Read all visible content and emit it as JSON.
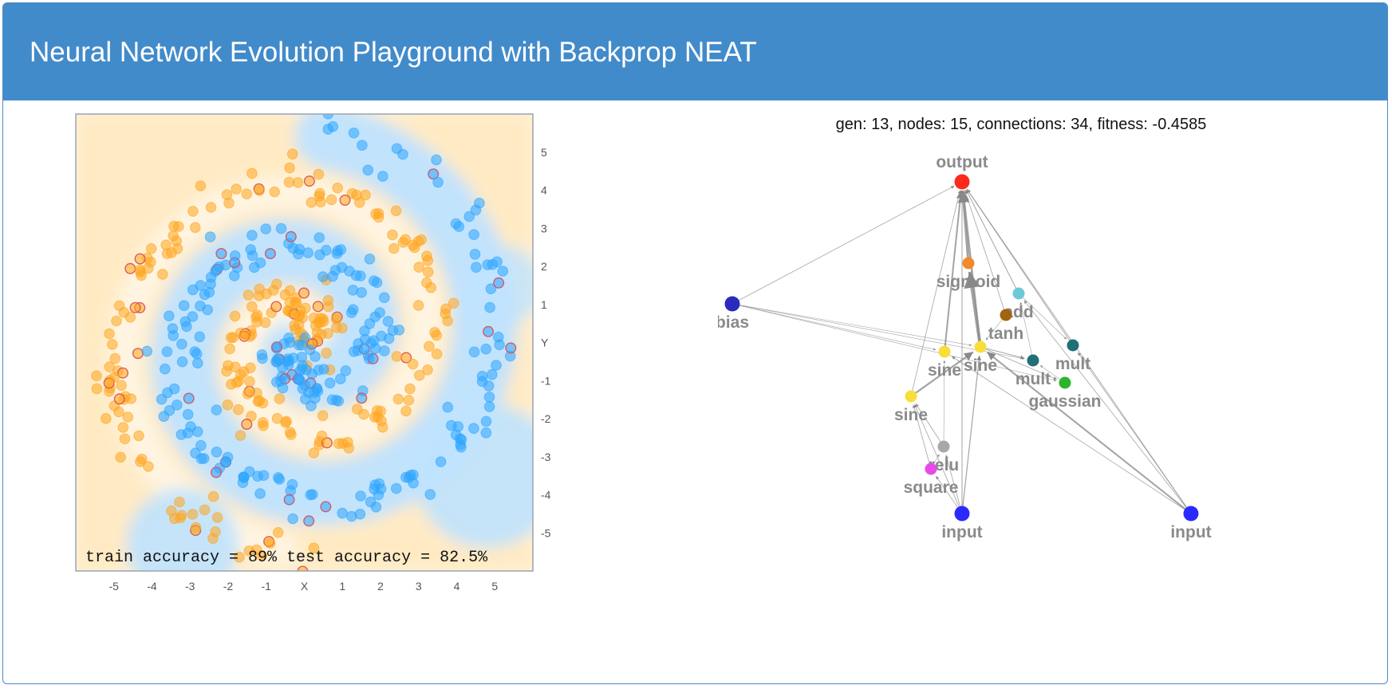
{
  "header": {
    "title": "Neural Network Evolution Playground with Backprop NEAT"
  },
  "accuracy": {
    "text": "train accuracy = 89%  test accuracy = 82.5%"
  },
  "chart_data": {
    "type": "scatter",
    "xlabel": "X",
    "ylabel": "Y",
    "xlim": [
      -6,
      6
    ],
    "ylim": [
      -6,
      6
    ],
    "x_ticks": [
      "-5",
      "-4",
      "-3",
      "-2",
      "-1",
      "X",
      "1",
      "2",
      "3",
      "4",
      "5"
    ],
    "y_ticks": [
      "5",
      "4",
      "3",
      "2",
      "1",
      "Y",
      "-1",
      "-2",
      "-3",
      "-4",
      "-5"
    ],
    "series": [
      {
        "class": "orange",
        "color": "#ffa51f"
      },
      {
        "class": "blue",
        "color": "#2ea6ff"
      }
    ],
    "spiral": {
      "arms": 2,
      "turns": 1.75,
      "max_radius": 5.5
    }
  },
  "network": {
    "stats": "gen: 13, nodes: 15, connections: 34, fitness: -0.4585",
    "nodes": [
      {
        "id": "output",
        "label": "output",
        "color": "#ff2a1a"
      },
      {
        "id": "bias",
        "label": "bias",
        "color": "#2a2abf"
      },
      {
        "id": "input1",
        "label": "input",
        "color": "#2a2aff"
      },
      {
        "id": "input2",
        "label": "input",
        "color": "#2a2aff"
      },
      {
        "id": "sigmoid",
        "label": "sigmoid",
        "color": "#f08a2a"
      },
      {
        "id": "add",
        "label": "add",
        "color": "#6ccad8"
      },
      {
        "id": "tanh",
        "label": "tanh",
        "color": "#a0650f"
      },
      {
        "id": "mult1",
        "label": "mult",
        "color": "#1f7077"
      },
      {
        "id": "mult2",
        "label": "mult",
        "color": "#1f7077"
      },
      {
        "id": "sine1",
        "label": "sine",
        "color": "#f7de3a"
      },
      {
        "id": "sine2",
        "label": "sine",
        "color": "#f7de3a"
      },
      {
        "id": "sine3",
        "label": "sine",
        "color": "#f7de3a"
      },
      {
        "id": "gaussian",
        "label": "gaussian",
        "color": "#2cb52c"
      },
      {
        "id": "relu",
        "label": "relu",
        "color": "#a8a8a8"
      },
      {
        "id": "square",
        "label": "square",
        "color": "#e84ae8"
      }
    ]
  }
}
